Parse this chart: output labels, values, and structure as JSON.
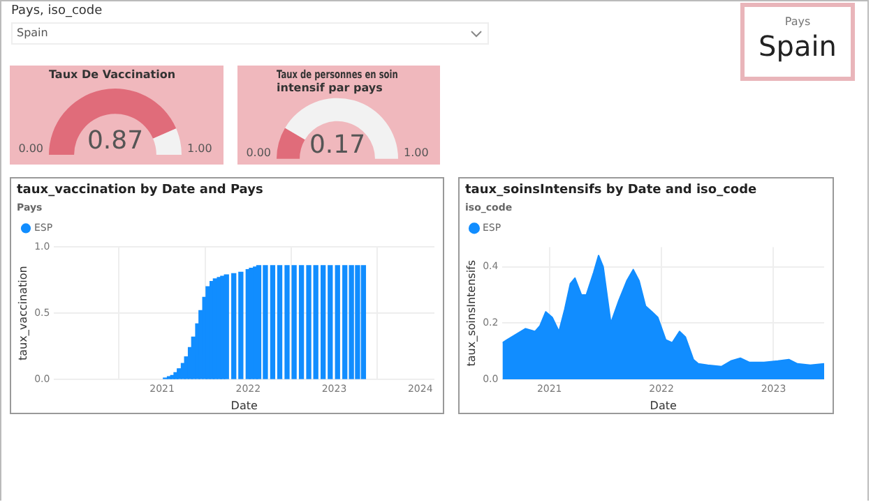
{
  "chart_data": [
    {
      "type": "other",
      "title": "Pays, iso_code",
      "annotations": [
        "Spain"
      ]
    },
    {
      "type": "other",
      "title": "Pays",
      "annotations": [
        "Spain"
      ]
    },
    {
      "type": "donut",
      "title": "Taux De Vaccination",
      "categories": [
        null,
        null
      ],
      "values": [
        0.87,
        0.13
      ],
      "colors": [
        "#e06c7a",
        "#f2f2f2"
      ],
      "annotations": [
        "0.00",
        "1.00",
        "0.87"
      ]
    },
    {
      "type": "donut",
      "title": "Taux de personnes en soin intensif par pays",
      "categories": [
        null,
        null
      ],
      "values": [
        0.17,
        0.83
      ],
      "colors": [
        "#e06c7a",
        "#f2f2f2"
      ],
      "annotations": [
        "0.00",
        "1.00",
        "0.17"
      ]
    },
    {
      "type": "bar",
      "title": "taux_vaccination by Date and Pays",
      "xlabel": "Date",
      "ylabel": "taux_vaccination",
      "legend_title": "Pays",
      "legend": "top left",
      "grid": true,
      "xlim": [
        "2019-10",
        "2024-03"
      ],
      "xticks": [
        "2021",
        "2022",
        "2023",
        "2024"
      ],
      "ylim": [
        0,
        1
      ],
      "yticks": [
        {
          "value": 0,
          "label": "0.0"
        },
        {
          "value": 0.5,
          "label": "0.5"
        },
        {
          "value": 1,
          "label": "1.0"
        }
      ],
      "x": [
        "2021-01-15",
        "2021-02-01",
        "2021-02-15",
        "2021-03-01",
        "2021-03-15",
        "2021-04-01",
        "2021-04-15",
        "2021-05-01",
        "2021-05-15",
        "2021-06-01",
        "2021-06-15",
        "2021-07-01",
        "2021-07-15",
        "2021-08-01",
        "2021-08-15",
        "2021-09-01",
        "2021-09-15",
        "2021-10-01",
        "2021-11-01",
        "2021-12-01",
        "2022-01-01",
        "2022-01-15",
        "2022-02-01",
        "2022-02-15",
        "2022-03-15",
        "2022-04-15",
        "2022-05-15",
        "2022-06-15",
        "2022-07-15",
        "2022-08-15",
        "2022-09-15",
        "2022-10-15",
        "2022-11-15",
        "2022-12-15",
        "2023-01-15",
        "2023-02-15",
        "2023-03-15",
        "2023-04-10",
        "2023-05-05"
      ],
      "series": [
        {
          "name": "ESP",
          "color": "#118dff",
          "values": [
            0.01,
            0.02,
            0.03,
            0.05,
            0.08,
            0.12,
            0.17,
            0.24,
            0.32,
            0.42,
            0.52,
            0.62,
            0.7,
            0.74,
            0.76,
            0.77,
            0.78,
            0.79,
            0.8,
            0.81,
            0.83,
            0.84,
            0.85,
            0.86,
            0.86,
            0.86,
            0.86,
            0.86,
            0.86,
            0.86,
            0.86,
            0.86,
            0.86,
            0.86,
            0.86,
            0.86,
            0.86,
            0.86,
            0.86
          ]
        }
      ]
    },
    {
      "type": "area",
      "title": "taux_soinsIntensifs by Date and iso_code",
      "xlabel": "Date",
      "ylabel": "taux_soinsIntensifs",
      "legend_title": "iso_code",
      "legend": "top left",
      "grid": true,
      "xlim": [
        "2020-08-01",
        "2023-06-15"
      ],
      "xticks": [
        "2021",
        "2022",
        "2023"
      ],
      "ylim": [
        0,
        0.47
      ],
      "yticks": [
        {
          "value": 0,
          "label": "0.0"
        },
        {
          "value": 0.2,
          "label": "0.2"
        },
        {
          "value": 0.4,
          "label": "0.4"
        }
      ],
      "x": [
        "2020-08-01",
        "2020-08-15",
        "2020-09-15",
        "2020-10-15",
        "2020-11-15",
        "2020-12-01",
        "2020-12-20",
        "2021-01-10",
        "2021-02-01",
        "2021-02-20",
        "2021-03-10",
        "2021-03-25",
        "2021-04-15",
        "2021-05-01",
        "2021-05-25",
        "2021-06-10",
        "2021-06-25",
        "2021-07-20",
        "2021-08-15",
        "2021-09-10",
        "2021-10-01",
        "2021-10-20",
        "2021-11-10",
        "2021-12-01",
        "2021-12-20",
        "2022-01-15",
        "2022-02-05",
        "2022-03-01",
        "2022-03-20",
        "2022-04-15",
        "2022-05-01",
        "2022-06-01",
        "2022-07-15",
        "2022-08-15",
        "2022-09-15",
        "2022-10-15",
        "2022-12-01",
        "2023-01-15",
        "2023-02-20",
        "2023-03-20",
        "2023-05-01",
        "2023-06-15"
      ],
      "series": [
        {
          "name": "ESP",
          "color": "#118dff",
          "values": [
            0.13,
            0.14,
            0.16,
            0.18,
            0.17,
            0.19,
            0.24,
            0.22,
            0.17,
            0.25,
            0.34,
            0.36,
            0.3,
            0.3,
            0.38,
            0.44,
            0.4,
            0.2,
            0.28,
            0.35,
            0.39,
            0.35,
            0.26,
            0.24,
            0.22,
            0.14,
            0.13,
            0.17,
            0.15,
            0.07,
            0.055,
            0.05,
            0.045,
            0.065,
            0.075,
            0.06,
            0.06,
            0.065,
            0.07,
            0.055,
            0.05,
            0.055
          ]
        }
      ]
    }
  ]
}
